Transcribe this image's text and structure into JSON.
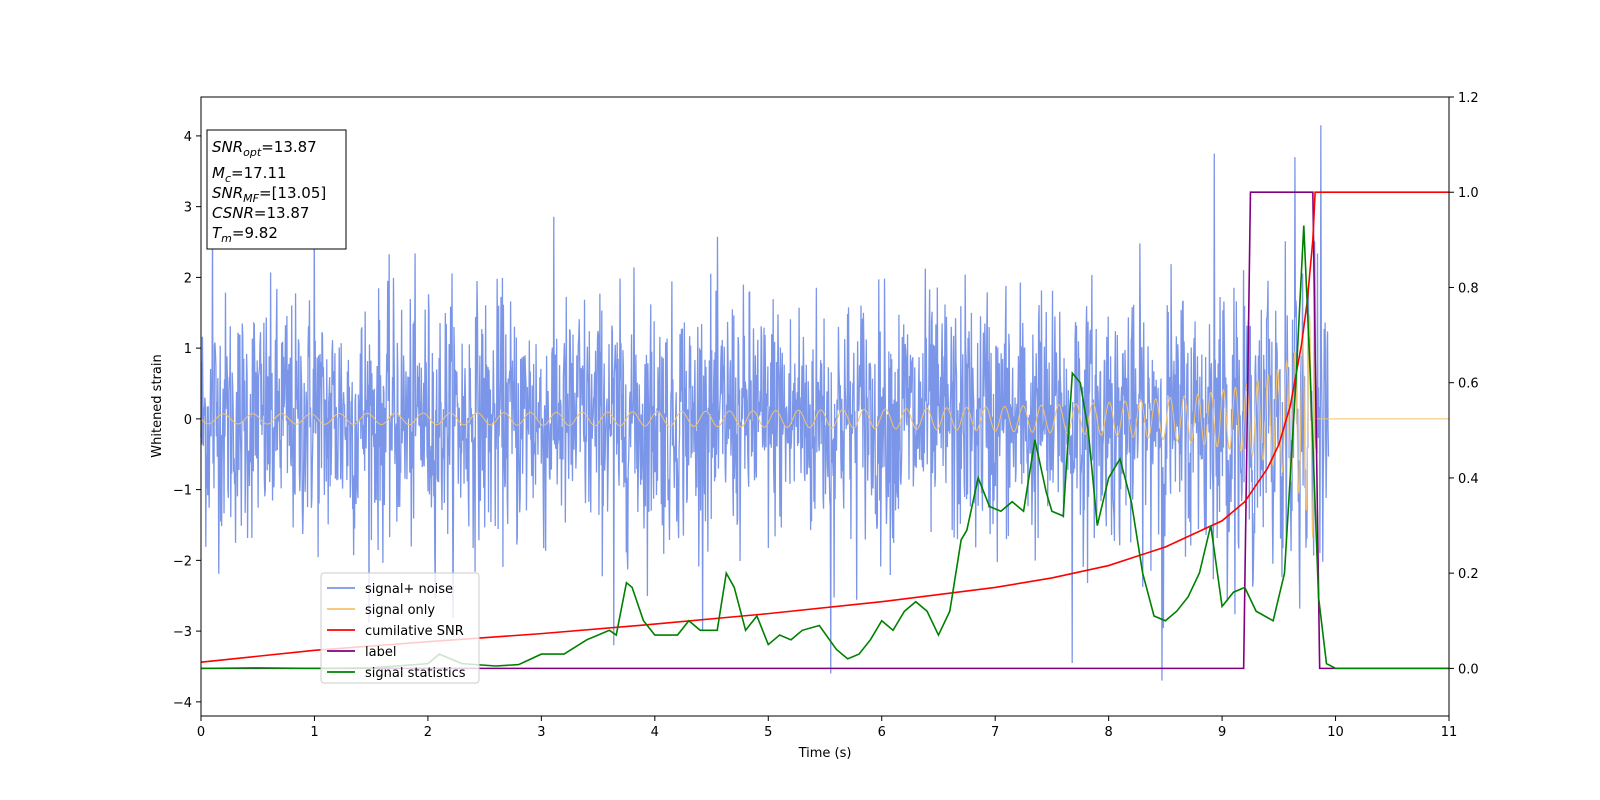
{
  "chart_data": {
    "type": "line",
    "xlabel": "Time (s)",
    "ylabel": "Whitened strain",
    "xlim": [
      0,
      11
    ],
    "ylim_left": [
      -4.2,
      4.55
    ],
    "ylim_right": [
      -0.1,
      1.2
    ],
    "x_ticks": [
      0,
      1,
      2,
      3,
      4,
      5,
      6,
      7,
      8,
      9,
      10,
      11
    ],
    "y_ticks_left": [
      -4,
      -3,
      -2,
      -1,
      0,
      1,
      2,
      3,
      4
    ],
    "y_ticks_right": [
      0.0,
      0.2,
      0.4,
      0.6,
      0.8,
      1.0,
      1.2
    ],
    "y_tick_labels_left": [
      "−4",
      "−3",
      "−2",
      "−1",
      "0",
      "1",
      "2",
      "3",
      "4"
    ],
    "y_tick_labels_right": [
      "0.0",
      "0.2",
      "0.4",
      "0.6",
      "0.8",
      "1.0",
      "1.2"
    ],
    "grid": false,
    "legend_position": "lower-left",
    "info_box_position": "top-left",
    "info_box": {
      "snr_opt": "13.87",
      "mc": "17.11",
      "snr_mf": "[13.05]",
      "csnr": "13.87",
      "tm": "9.82"
    },
    "series": [
      {
        "name": "signal+ noise",
        "axis": "left",
        "color": "#7b96e8",
        "kind": "noise",
        "envelope_typical": [
          -2.2,
          2.4
        ],
        "peak_points": [
          {
            "x": 8.93,
            "y": 3.75
          },
          {
            "x": 9.64,
            "y": 3.7
          },
          {
            "x": 9.87,
            "y": 4.15
          },
          {
            "x": 0.1,
            "y": 2.8
          },
          {
            "x": 1.0,
            "y": 2.9
          },
          {
            "x": 5.55,
            "y": -3.6
          },
          {
            "x": 8.47,
            "y": -3.7
          },
          {
            "x": 7.68,
            "y": -3.45
          },
          {
            "x": 3.64,
            "y": -3.2
          }
        ]
      },
      {
        "name": "signal only",
        "axis": "left",
        "color": "#f5c26b",
        "kind": "chirp",
        "merger_time": 9.82,
        "amplitude_at_merger": 1.9,
        "amplitude_at_start": 0.03
      },
      {
        "name": "cumilative SNR",
        "axis": "right",
        "color": "#ff0000",
        "x": [
          0,
          1,
          2,
          3,
          4,
          5,
          6,
          7,
          7.5,
          8,
          8.5,
          9,
          9.2,
          9.4,
          9.5,
          9.6,
          9.7,
          9.75,
          9.8,
          9.82,
          11
        ],
        "y": [
          0.013,
          0.038,
          0.056,
          0.073,
          0.093,
          0.115,
          0.14,
          0.17,
          0.19,
          0.216,
          0.255,
          0.31,
          0.35,
          0.42,
          0.47,
          0.55,
          0.68,
          0.77,
          0.9,
          1.0,
          1.0
        ]
      },
      {
        "name": "label",
        "axis": "right",
        "color": "#800080",
        "x": [
          0,
          9.19,
          9.25,
          9.8,
          9.86,
          11
        ],
        "y": [
          0,
          0,
          1,
          1,
          0,
          0
        ]
      },
      {
        "name": "signal statistics",
        "axis": "right",
        "color": "#008000",
        "x": [
          0,
          0.5,
          1,
          1.5,
          2,
          2.1,
          2.3,
          2.6,
          2.8,
          3,
          3.2,
          3.4,
          3.6,
          3.66,
          3.75,
          3.8,
          3.9,
          4,
          4.2,
          4.3,
          4.4,
          4.55,
          4.63,
          4.7,
          4.8,
          4.9,
          5,
          5.1,
          5.2,
          5.3,
          5.45,
          5.6,
          5.7,
          5.8,
          5.9,
          6,
          6.1,
          6.2,
          6.3,
          6.4,
          6.5,
          6.6,
          6.7,
          6.75,
          6.85,
          6.95,
          7.05,
          7.15,
          7.25,
          7.35,
          7.45,
          7.5,
          7.6,
          7.68,
          7.75,
          7.82,
          7.9,
          8,
          8.1,
          8.2,
          8.3,
          8.4,
          8.5,
          8.6,
          8.7,
          8.8,
          8.9,
          9,
          9.1,
          9.2,
          9.3,
          9.45,
          9.55,
          9.65,
          9.72,
          9.78,
          9.85,
          9.92,
          10,
          11
        ],
        "y": [
          0.0,
          0.001,
          0.0,
          0.001,
          0.01,
          0.03,
          0.01,
          0.005,
          0.008,
          0.03,
          0.03,
          0.06,
          0.08,
          0.07,
          0.18,
          0.17,
          0.1,
          0.07,
          0.07,
          0.1,
          0.08,
          0.08,
          0.2,
          0.17,
          0.08,
          0.11,
          0.05,
          0.07,
          0.06,
          0.08,
          0.09,
          0.04,
          0.02,
          0.03,
          0.06,
          0.1,
          0.08,
          0.12,
          0.14,
          0.12,
          0.07,
          0.12,
          0.27,
          0.29,
          0.4,
          0.34,
          0.33,
          0.35,
          0.33,
          0.48,
          0.37,
          0.33,
          0.32,
          0.62,
          0.6,
          0.5,
          0.3,
          0.4,
          0.44,
          0.35,
          0.2,
          0.11,
          0.1,
          0.12,
          0.15,
          0.2,
          0.3,
          0.13,
          0.16,
          0.17,
          0.12,
          0.1,
          0.2,
          0.6,
          0.93,
          0.6,
          0.15,
          0.01,
          0.0,
          0.0
        ]
      }
    ]
  }
}
